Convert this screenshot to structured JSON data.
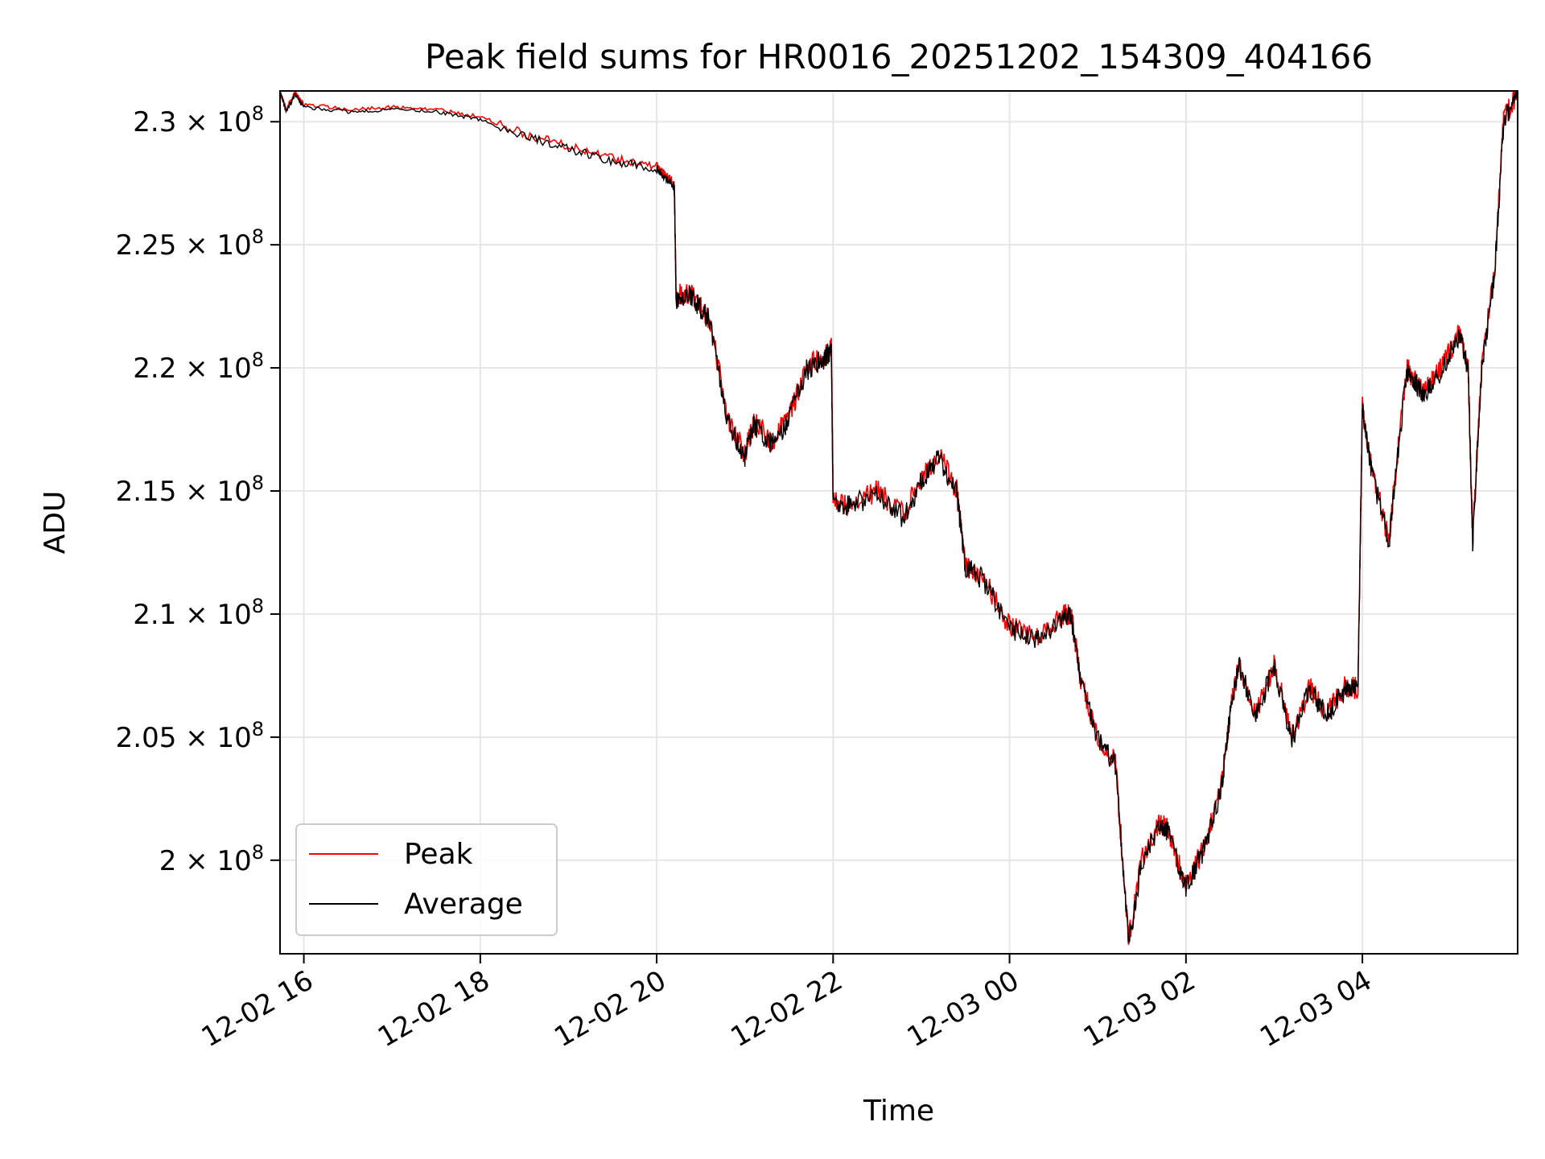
{
  "chart_data": {
    "type": "line",
    "title": "Peak field sums for HR0016_20251202_154309_404166",
    "xlabel": "Time",
    "ylabel": "ADU",
    "x_unit": "hours since 12-02 00:00",
    "xlim": [
      15.73,
      29.76
    ],
    "ylim": [
      196200000.0,
      231250000.0
    ],
    "grid": true,
    "legend_position": "lower-left",
    "x_ticks": [
      {
        "value": 16,
        "label": "12-02 16"
      },
      {
        "value": 18,
        "label": "12-02 18"
      },
      {
        "value": 20,
        "label": "12-02 20"
      },
      {
        "value": 22,
        "label": "12-02 22"
      },
      {
        "value": 24,
        "label": "12-03 00"
      },
      {
        "value": 26,
        "label": "12-03 02"
      },
      {
        "value": 28,
        "label": "12-03 04"
      }
    ],
    "y_ticks": [
      {
        "value": 200000000.0,
        "label": "2 × 10",
        "exp": "8"
      },
      {
        "value": 205000000.0,
        "label": "2.05 × 10",
        "exp": "8"
      },
      {
        "value": 210000000.0,
        "label": "2.1 × 10",
        "exp": "8"
      },
      {
        "value": 215000000.0,
        "label": "2.15 × 10",
        "exp": "8"
      },
      {
        "value": 220000000.0,
        "label": "2.2 × 10",
        "exp": "8"
      },
      {
        "value": 225000000.0,
        "label": "2.25 × 10",
        "exp": "8"
      },
      {
        "value": 230000000.0,
        "label": "2.3 × 10",
        "exp": "8"
      }
    ],
    "series": [
      {
        "name": "Peak",
        "color": "#ff0000",
        "x": [
          15.73,
          15.8,
          15.9,
          16.0,
          16.5,
          17.0,
          17.5,
          18.0,
          18.5,
          19.0,
          19.5,
          20.0,
          20.1,
          20.2,
          20.22,
          20.4,
          20.6,
          20.8,
          21.0,
          21.1,
          21.3,
          21.5,
          21.7,
          21.9,
          21.98,
          22.0,
          22.2,
          22.5,
          22.8,
          23.0,
          23.2,
          23.4,
          23.5,
          23.7,
          24.0,
          24.3,
          24.6,
          24.7,
          24.8,
          25.0,
          25.2,
          25.35,
          25.5,
          25.7,
          25.8,
          26.0,
          26.2,
          26.4,
          26.5,
          26.6,
          26.8,
          27.0,
          27.2,
          27.4,
          27.6,
          27.8,
          27.95,
          28.0,
          28.1,
          28.3,
          28.5,
          28.6,
          28.7,
          28.9,
          29.1,
          29.2,
          29.25,
          29.35,
          29.5,
          29.6,
          29.76
        ],
        "values": [
          231250000.0,
          230500000.0,
          231200000.0,
          230700000.0,
          230500000.0,
          230600000.0,
          230500000.0,
          230200000.0,
          229500000.0,
          229000000.0,
          228500000.0,
          228200000.0,
          227800000.0,
          227500000.0,
          223000000.0,
          223000000.0,
          222000000.0,
          218000000.0,
          216500000.0,
          217800000.0,
          217000000.0,
          218000000.0,
          220000000.0,
          220500000.0,
          220800000.0,
          214500000.0,
          214500000.0,
          215000000.0,
          214000000.0,
          215500000.0,
          216500000.0,
          215000000.0,
          212000000.0,
          211500000.0,
          209500000.0,
          209000000.0,
          210000000.0,
          210000000.0,
          207500000.0,
          205000000.0,
          204000000.0,
          196800000.0,
          200000000.0,
          201500000.0,
          201200000.0,
          199000000.0,
          200500000.0,
          203000000.0,
          206000000.0,
          208000000.0,
          206000000.0,
          208000000.0,
          205000000.0,
          207000000.0,
          206000000.0,
          207000000.0,
          207000000.0,
          218500000.0,
          216000000.0,
          213000000.0,
          220000000.0,
          219500000.0,
          219000000.0,
          220000000.0,
          221500000.0,
          220000000.0,
          213000000.0,
          220000000.0,
          224000000.0,
          230000000.0,
          231250000.0
        ]
      },
      {
        "name": "Average",
        "color": "#000000",
        "x": [
          15.73,
          15.8,
          15.9,
          16.0,
          16.5,
          17.0,
          17.5,
          18.0,
          18.5,
          19.0,
          19.5,
          20.0,
          20.1,
          20.2,
          20.22,
          20.4,
          20.6,
          20.8,
          21.0,
          21.1,
          21.3,
          21.5,
          21.7,
          21.9,
          21.98,
          22.0,
          22.2,
          22.5,
          22.8,
          23.0,
          23.2,
          23.4,
          23.5,
          23.7,
          24.0,
          24.3,
          24.6,
          24.7,
          24.8,
          25.0,
          25.2,
          25.35,
          25.5,
          25.7,
          25.8,
          26.0,
          26.2,
          26.4,
          26.5,
          26.6,
          26.8,
          27.0,
          27.2,
          27.4,
          27.6,
          27.8,
          27.95,
          28.0,
          28.1,
          28.3,
          28.5,
          28.6,
          28.7,
          28.9,
          29.1,
          29.2,
          29.25,
          29.35,
          29.5,
          29.6,
          29.76
        ],
        "values": [
          231250000.0,
          230400000.0,
          231100000.0,
          230600000.0,
          230400000.0,
          230500000.0,
          230400000.0,
          230100000.0,
          229400000.0,
          228900000.0,
          228400000.0,
          228100000.0,
          227700000.0,
          227400000.0,
          222800000.0,
          222900000.0,
          221900000.0,
          217900000.0,
          216400000.0,
          217700000.0,
          216900000.0,
          217900000.0,
          219900000.0,
          220400000.0,
          220700000.0,
          214400000.0,
          214400000.0,
          214900000.0,
          213900000.0,
          215400000.0,
          216400000.0,
          214900000.0,
          211900000.0,
          211400000.0,
          209400000.0,
          208900000.0,
          209900000.0,
          209900000.0,
          207400000.0,
          204900000.0,
          203900000.0,
          196600000.0,
          199900000.0,
          201400000.0,
          201100000.0,
          198900000.0,
          200400000.0,
          202900000.0,
          205900000.0,
          207900000.0,
          205900000.0,
          207900000.0,
          204900000.0,
          206900000.0,
          205900000.0,
          206900000.0,
          206900000.0,
          218400000.0,
          215900000.0,
          212900000.0,
          219900000.0,
          219400000.0,
          218900000.0,
          219900000.0,
          221400000.0,
          219900000.0,
          212900000.0,
          219900000.0,
          223900000.0,
          229900000.0,
          231250000.0
        ]
      }
    ]
  }
}
